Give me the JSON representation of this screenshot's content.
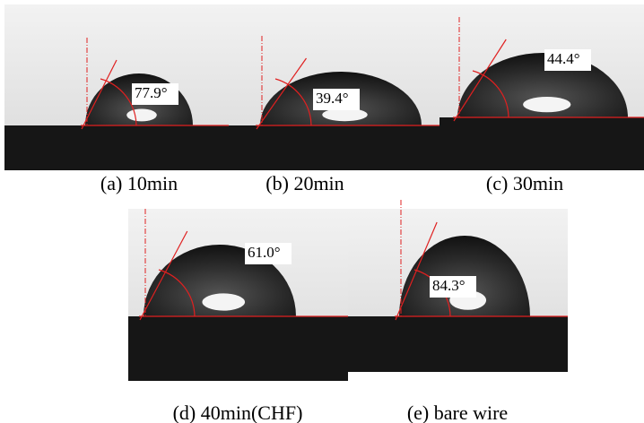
{
  "panels": [
    {
      "angle": "77.9°",
      "caption": "(a)  10min"
    },
    {
      "angle": "39.4°",
      "caption": "(b)  20min"
    },
    {
      "angle": "44.4°",
      "caption": "(c) 30min"
    },
    {
      "angle": "61.0°",
      "caption": "(d)  40min(CHF)"
    },
    {
      "angle": "84.3°",
      "caption": "(e)  bare wire"
    }
  ]
}
